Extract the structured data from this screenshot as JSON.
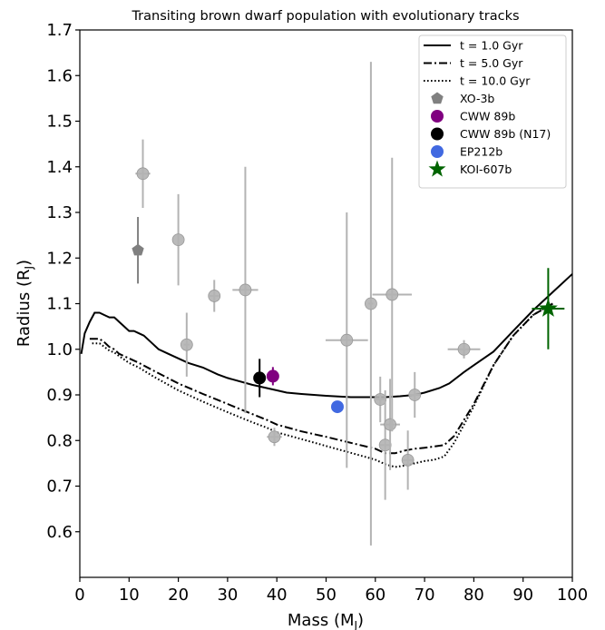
{
  "chart_data": {
    "type": "scatter",
    "title": "Transiting brown dwarf population with evolutionary tracks",
    "xlabel": "Mass (M",
    "xlabel_sub": "J",
    "ylabel": "Radius (R",
    "ylabel_sub": "J",
    "xlim": [
      0,
      100
    ],
    "ylim": [
      0.5,
      1.7
    ],
    "xticks": [
      0,
      10,
      20,
      30,
      40,
      50,
      60,
      70,
      80,
      90,
      100
    ],
    "yticks": [
      0.6,
      0.7,
      0.8,
      0.9,
      1.0,
      1.1,
      1.2,
      1.3,
      1.4,
      1.5,
      1.6,
      1.7
    ],
    "grid": false,
    "legend_position": "top-right",
    "tracks": [
      {
        "name": "t = 1.0 Gyr",
        "style": "solid",
        "x": [
          0.3,
          1,
          2,
          3,
          4,
          5,
          6,
          7,
          8,
          9,
          10,
          11,
          12,
          13,
          14,
          15,
          16,
          18,
          20,
          22,
          25,
          28,
          30,
          35,
          40,
          42,
          45,
          50,
          55,
          58,
          60,
          62,
          65,
          68,
          70,
          73,
          75,
          78,
          80,
          84,
          88,
          92,
          96,
          100
        ],
        "y": [
          0.99,
          1.035,
          1.06,
          1.08,
          1.08,
          1.075,
          1.07,
          1.07,
          1.06,
          1.05,
          1.04,
          1.04,
          1.035,
          1.03,
          1.02,
          1.01,
          1.0,
          0.99,
          0.98,
          0.97,
          0.96,
          0.945,
          0.937,
          0.922,
          0.91,
          0.905,
          0.902,
          0.898,
          0.895,
          0.895,
          0.895,
          0.895,
          0.897,
          0.9,
          0.905,
          0.915,
          0.925,
          0.95,
          0.965,
          0.995,
          1.04,
          1.085,
          1.125,
          1.165
        ]
      },
      {
        "name": "t = 5.0 Gyr",
        "style": "dashdot",
        "x": [
          2,
          4,
          5,
          6,
          7,
          8,
          10,
          12,
          15,
          20,
          25,
          30,
          35,
          38,
          40,
          45,
          50,
          55,
          60,
          62,
          64,
          66,
          68,
          70,
          72,
          74,
          76,
          80,
          84,
          88,
          92,
          96
        ],
        "y": [
          1.023,
          1.023,
          1.015,
          1.005,
          1.0,
          0.99,
          0.98,
          0.97,
          0.953,
          0.925,
          0.902,
          0.88,
          0.858,
          0.845,
          0.835,
          0.82,
          0.808,
          0.795,
          0.782,
          0.772,
          0.772,
          0.778,
          0.782,
          0.784,
          0.787,
          0.79,
          0.81,
          0.88,
          0.965,
          1.03,
          1.075,
          1.1
        ]
      },
      {
        "name": "t = 10.0 Gyr",
        "style": "dotted",
        "x": [
          2.5,
          4,
          5,
          6,
          7,
          8,
          10,
          12,
          15,
          20,
          25,
          30,
          35,
          38,
          40,
          45,
          50,
          55,
          60,
          62,
          64,
          66,
          68,
          70,
          72,
          74,
          76,
          80,
          84,
          88,
          92,
          96
        ],
        "y": [
          1.013,
          1.013,
          1.005,
          0.997,
          0.993,
          0.985,
          0.97,
          0.96,
          0.94,
          0.91,
          0.885,
          0.862,
          0.84,
          0.828,
          0.818,
          0.803,
          0.788,
          0.773,
          0.758,
          0.748,
          0.742,
          0.745,
          0.75,
          0.755,
          0.758,
          0.765,
          0.795,
          0.875,
          0.965,
          1.03,
          1.075,
          1.1
        ]
      }
    ],
    "population": {
      "color": "#b3b3b3",
      "points": [
        {
          "x": 12.8,
          "y": 1.385,
          "xerr": 1.5,
          "yerr": 0.075
        },
        {
          "x": 20.0,
          "y": 1.24,
          "xerr": 0.0,
          "yerr": 0.1
        },
        {
          "x": 21.7,
          "y": 1.01,
          "xerr": 0.6,
          "yerr": 0.07
        },
        {
          "x": 27.3,
          "y": 1.117,
          "xerr": 1.0,
          "yerr": 0.035
        },
        {
          "x": 33.6,
          "y": 1.13,
          "xerr": 2.6,
          "yerr": 0.27
        },
        {
          "x": 39.5,
          "y": 0.808,
          "xerr": 1.5,
          "yerr": 0.02
        },
        {
          "x": 54.2,
          "y": 1.02,
          "xerr": 4.3,
          "yerr": 0.28
        },
        {
          "x": 59.1,
          "y": 1.1,
          "xerr": 0.5,
          "yerr": 0.53
        },
        {
          "x": 61.0,
          "y": 0.89,
          "xerr": 1.0,
          "yerr": 0.05
        },
        {
          "x": 62.0,
          "y": 0.79,
          "xerr": 1.0,
          "yerr": 0.12
        },
        {
          "x": 63.0,
          "y": 0.835,
          "xerr": 2.0,
          "yerr": 0.1
        },
        {
          "x": 63.4,
          "y": 1.12,
          "xerr": 4.0,
          "yerr": 0.3
        },
        {
          "x": 66.6,
          "y": 0.757,
          "xerr": 1.2,
          "yerr": 0.065
        },
        {
          "x": 68.0,
          "y": 0.9,
          "xerr": 1.2,
          "yerr": 0.05
        },
        {
          "x": 78.0,
          "y": 1.0,
          "xerr": 3.3,
          "yerr": 0.02
        }
      ]
    },
    "highlighted": [
      {
        "name": "XO-3b",
        "marker": "pentagon",
        "color": "#808080",
        "x": 11.8,
        "y": 1.217,
        "xerr": 0.5,
        "yerr": 0.073
      },
      {
        "name": "CWW 89b",
        "marker": "circle",
        "color": "#800080",
        "x": 39.2,
        "y": 0.941,
        "xerr": 1.1,
        "yerr": 0.02
      },
      {
        "name": "CWW 89b (N17)",
        "marker": "circle",
        "color": "#000000",
        "x": 36.5,
        "y": 0.937,
        "xerr": 0.1,
        "yerr": 0.042
      },
      {
        "name": "EP212b",
        "marker": "circle",
        "color": "#4169e1",
        "x": 52.3,
        "y": 0.874,
        "xerr": 1.2,
        "yerr": 0.01
      },
      {
        "name": "KOI-607b",
        "marker": "star",
        "color": "#006400",
        "x": 95.1,
        "y": 1.089,
        "xerr": 3.3,
        "yerr": 0.089
      }
    ]
  }
}
